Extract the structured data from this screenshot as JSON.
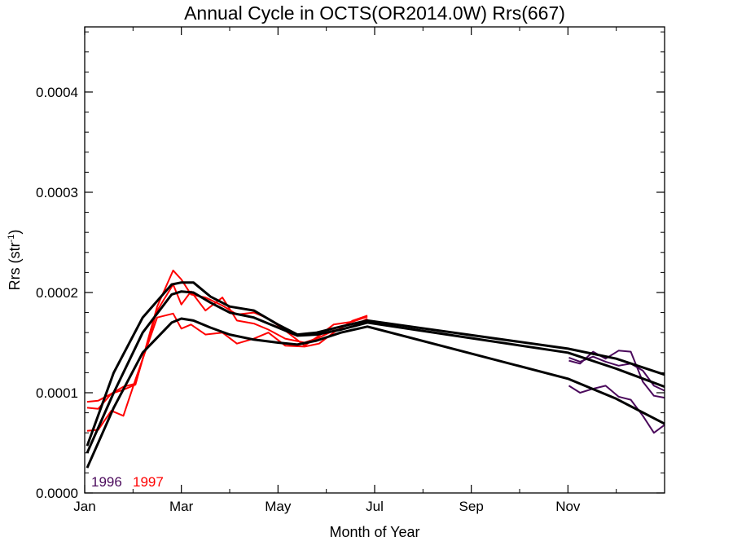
{
  "chart_data": {
    "type": "line",
    "title": "Annual Cycle in OCTS(OR2014.0W) Rrs(667)",
    "xlabel": "Month of Year",
    "ylabel_main": "Rrs (str",
    "ylabel_sup": "-1",
    "ylabel_close": ")",
    "xlim": [
      0,
      12
    ],
    "ylim": [
      0.0,
      0.000465
    ],
    "xticks": [
      {
        "value": 0,
        "label": "Jan"
      },
      {
        "value": 2,
        "label": "Mar"
      },
      {
        "value": 4,
        "label": "May"
      },
      {
        "value": 6,
        "label": "Jul"
      },
      {
        "value": 8,
        "label": "Sep"
      },
      {
        "value": 10,
        "label": "Nov"
      }
    ],
    "yticks": [
      {
        "value": 0.0,
        "label": "0.0000"
      },
      {
        "value": 0.0001,
        "label": "0.0001"
      },
      {
        "value": 0.0002,
        "label": "0.0002"
      },
      {
        "value": 0.0003,
        "label": "0.0003"
      },
      {
        "value": 0.0004,
        "label": "0.0004"
      }
    ],
    "legend": [
      {
        "label": "1996",
        "color": "#4b0a5c"
      },
      {
        "label": "1997",
        "color": "#ff0000"
      }
    ],
    "series": [
      {
        "color": "#4b0a5c",
        "width": 2,
        "x": [
          10.02,
          10.25,
          10.52,
          10.78,
          11.05,
          11.3,
          11.55,
          11.78,
          12.0
        ],
        "y": [
          0.000132,
          0.000129,
          0.000141,
          0.000134,
          0.000142,
          0.000141,
          0.000111,
          9.7e-05,
          9.5e-05
        ]
      },
      {
        "color": "#4b0a5c",
        "width": 2,
        "x": [
          10.02,
          10.25,
          10.52,
          10.78,
          11.05,
          11.3,
          11.55,
          11.78,
          12.0
        ],
        "y": [
          0.000107,
          0.0001,
          0.000104,
          0.000107,
          9.6e-05,
          9.3e-05,
          7.7e-05,
          6e-05,
          6.8e-05
        ]
      },
      {
        "color": "#4b0a5c",
        "width": 2,
        "x": [
          10.02,
          10.25,
          10.52,
          10.78,
          11.05,
          11.3,
          11.55,
          11.78,
          12.0
        ],
        "y": [
          0.000135,
          0.000131,
          0.000136,
          0.000131,
          0.000127,
          0.000129,
          0.000122,
          0.000107,
          0.000102
        ]
      },
      {
        "color": "#ff0000",
        "width": 2,
        "x": [
          0.05,
          0.28,
          0.55,
          0.8,
          1.05,
          1.5,
          1.83,
          2.0,
          2.2,
          2.5,
          2.85,
          3.15,
          3.5,
          3.8,
          4.15,
          4.55,
          4.85,
          5.15,
          5.55,
          5.85
        ],
        "y": [
          9.1e-05,
          9.2e-05,
          9.9e-05,
          0.000103,
          0.000108,
          0.000186,
          0.000222,
          0.000213,
          0.000198,
          0.000195,
          0.000187,
          0.000178,
          0.00018,
          0.000174,
          0.000162,
          0.000147,
          0.000157,
          0.000168,
          0.000171,
          0.000176
        ]
      },
      {
        "color": "#ff0000",
        "width": 2,
        "x": [
          0.05,
          0.28,
          0.55,
          0.8,
          1.05,
          1.5,
          1.83,
          2.0,
          2.2,
          2.5,
          2.85,
          3.15,
          3.5,
          3.8,
          4.15,
          4.55,
          4.85,
          5.15,
          5.55,
          5.85
        ],
        "y": [
          6.2e-05,
          6.3e-05,
          8.2e-05,
          7.7e-05,
          0.000113,
          0.000175,
          0.000179,
          0.000164,
          0.000168,
          0.000158,
          0.00016,
          0.000149,
          0.000154,
          0.00016,
          0.000147,
          0.000146,
          0.000149,
          0.00016,
          0.000172,
          0.000177
        ]
      },
      {
        "color": "#ff0000",
        "width": 2,
        "x": [
          0.05,
          0.28,
          0.55,
          0.8,
          1.05,
          1.5,
          1.83,
          2.0,
          2.2,
          2.5,
          2.85,
          3.15,
          3.5,
          3.8,
          4.15,
          4.55,
          4.85,
          5.15,
          5.55,
          5.85
        ],
        "y": [
          8.5e-05,
          8.4e-05,
          9.9e-05,
          0.000106,
          0.000109,
          0.000182,
          0.000208,
          0.000188,
          0.000201,
          0.000182,
          0.000195,
          0.000172,
          0.000169,
          0.000163,
          0.000154,
          0.00015,
          0.000155,
          0.000162,
          0.000166,
          0.000174
        ]
      },
      {
        "color": "#000000",
        "width": 3,
        "x": [
          0.05,
          0.6,
          1.2,
          1.8,
          2.0,
          2.25,
          2.6,
          3.0,
          3.5,
          4.0,
          4.4,
          4.8,
          5.3,
          5.85,
          10.0,
          11.0,
          12.0
        ],
        "y": [
          2.5e-05,
          8.5e-05,
          0.00014,
          0.00017,
          0.000174,
          0.000172,
          0.000165,
          0.000158,
          0.000153,
          0.00015,
          0.000148,
          0.000152,
          0.00016,
          0.000166,
          0.000114,
          9.4e-05,
          6.9e-05
        ]
      },
      {
        "color": "#000000",
        "width": 3,
        "x": [
          0.05,
          0.6,
          1.2,
          1.8,
          2.0,
          2.25,
          2.6,
          3.0,
          3.5,
          4.0,
          4.4,
          4.8,
          5.3,
          5.85,
          10.0,
          11.0,
          12.0
        ],
        "y": [
          4e-05,
          0.0001,
          0.00016,
          0.000198,
          0.000201,
          0.0002,
          0.00019,
          0.00018,
          0.000175,
          0.000165,
          0.000157,
          0.000158,
          0.000163,
          0.00017,
          0.00014,
          0.000124,
          0.000106
        ]
      },
      {
        "color": "#000000",
        "width": 3,
        "x": [
          0.05,
          0.6,
          1.2,
          1.8,
          2.0,
          2.25,
          2.6,
          3.0,
          3.5,
          4.0,
          4.4,
          4.8,
          5.3,
          5.85,
          10.0,
          11.0,
          12.0
        ],
        "y": [
          4.7e-05,
          0.00012,
          0.000175,
          0.000208,
          0.00021,
          0.00021,
          0.000196,
          0.000186,
          0.000182,
          0.000168,
          0.000158,
          0.00016,
          0.000166,
          0.000172,
          0.000144,
          0.000134,
          0.000118
        ]
      }
    ]
  }
}
